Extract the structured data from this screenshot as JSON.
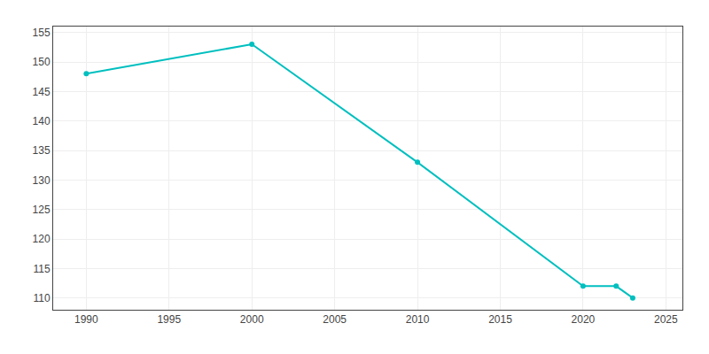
{
  "chart_data": {
    "type": "line",
    "x": [
      1990,
      2000,
      2010,
      2020,
      2022,
      2023
    ],
    "values": [
      148,
      153,
      133,
      112,
      112,
      110
    ],
    "color": "#00BFBF",
    "marker": "circle",
    "line_style": "solid",
    "xlim": [
      1988,
      2026
    ],
    "xticks": [
      1990,
      1995,
      2000,
      2005,
      2010,
      2015,
      2020,
      2025
    ],
    "ylim": [
      108,
      156
    ],
    "yticks": [
      110,
      115,
      120,
      125,
      130,
      135,
      140,
      145,
      150,
      155
    ],
    "grid": true
  }
}
